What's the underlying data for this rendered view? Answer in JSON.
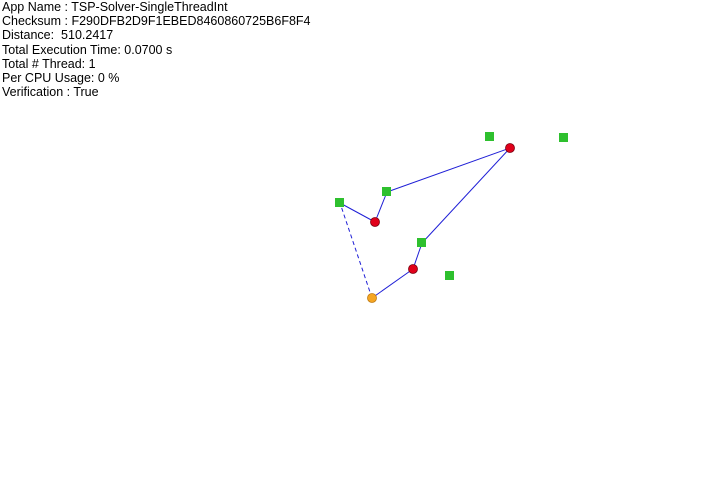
{
  "info": {
    "app_name": "App Name : TSP-Solver-SingleThreadInt",
    "checksum": "Checksum : F290DFB2D9F1EBED8460860725B6F8F4",
    "distance": "Distance:  510.2417",
    "execution_time": "Total Execution Time: 0.0700 s",
    "threads": "Total # Thread: 1",
    "cpu_usage": "Per CPU Usage: 0 %",
    "verification": "Verification : True"
  },
  "colors": {
    "path": "#1f1fd6",
    "node_square": "#2ec02e",
    "node_red": "#e0001a",
    "node_orange": "#f5a623",
    "text": "#000000",
    "background": "#ffffff"
  }
}
